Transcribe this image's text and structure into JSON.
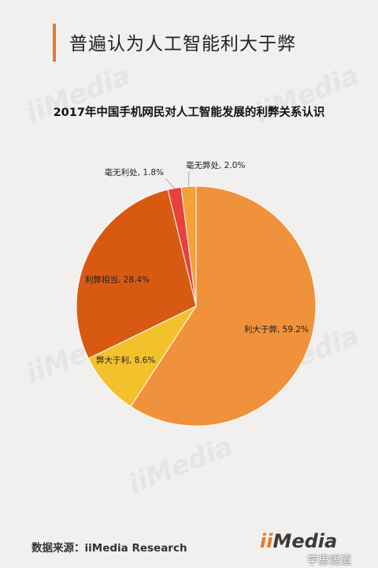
{
  "header": {
    "title": "普遍认为人工智能利大于弊"
  },
  "chart_data": {
    "type": "pie",
    "title": "2017年中国手机网民对人工智能发展的利弊关系认识",
    "slices": [
      {
        "label": "利大于弊",
        "value": 59.2,
        "color": "#f0923b"
      },
      {
        "label": "弊大于利",
        "value": 8.6,
        "color": "#f2c12b"
      },
      {
        "label": "利弊相当",
        "value": 28.4,
        "color": "#d85a12"
      },
      {
        "label": "毫无利处",
        "value": 1.8,
        "color": "#e8413b"
      },
      {
        "label": "毫无弊处",
        "value": 2.0,
        "color": "#f4a13a"
      }
    ],
    "data_labels": [
      "利大于弊, 59.2%",
      "弊大于利, 8.6%",
      "利弊相当, 28.4%",
      "毫无利处, 1.8%",
      "毫无弊处, 2.0%"
    ]
  },
  "footer": {
    "source": "数据来源：iiMedia Research",
    "logo_ii": "ii",
    "logo_text": "Media",
    "credit": "学思悟道"
  },
  "colors": {
    "accent": "#e8792b"
  }
}
